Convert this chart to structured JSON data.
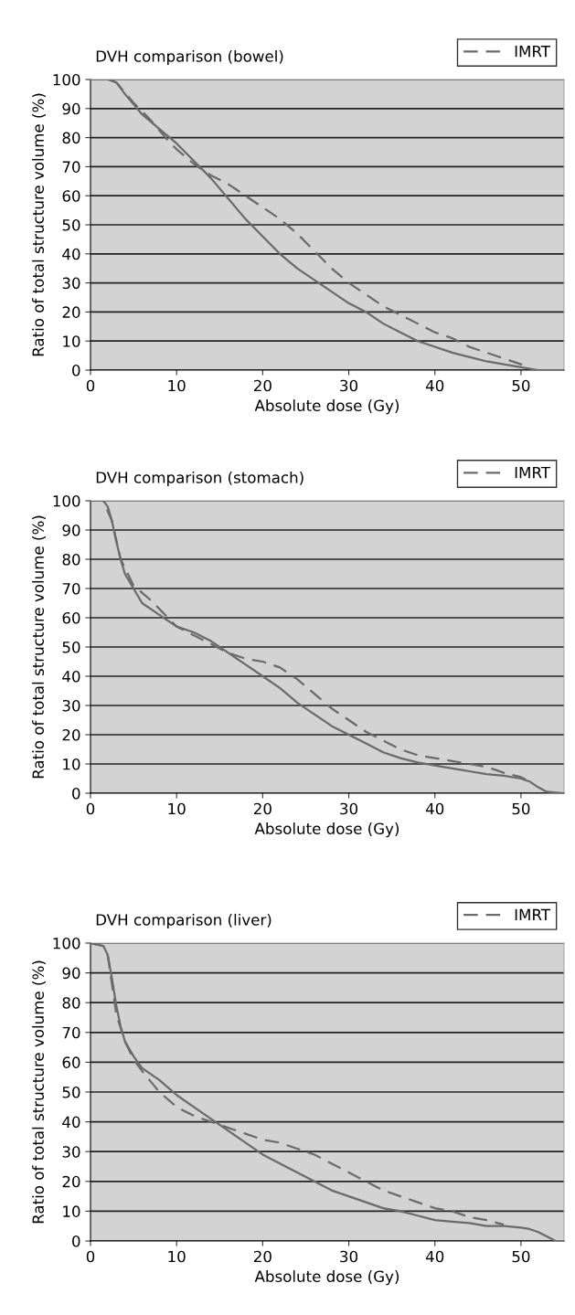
{
  "chart_data": [
    {
      "type": "line",
      "title": "DVH comparison (bowel)",
      "xlabel": "Absolute dose (Gy)",
      "ylabel": "Ratio of total structure volume (%)",
      "xlim": [
        0,
        55
      ],
      "xticks": [
        0,
        10,
        20,
        30,
        40,
        50
      ],
      "ylim": [
        0,
        100
      ],
      "yticks": [
        0,
        10,
        20,
        30,
        40,
        50,
        60,
        70,
        80,
        90,
        100
      ],
      "grid": "y",
      "legend": "top right",
      "marker": "none",
      "series": [
        {
          "color": "#6a6a6a",
          "line_style": "solid",
          "x": [
            0,
            2,
            3,
            4,
            6,
            8,
            10,
            12,
            14,
            16,
            18,
            20,
            22,
            24,
            26,
            28,
            30,
            32,
            34,
            36,
            38,
            40,
            42,
            44,
            46,
            48,
            50,
            52,
            55
          ],
          "values": [
            100,
            100,
            99,
            95,
            88,
            83,
            78,
            72,
            66,
            59,
            52,
            46,
            40,
            35,
            31,
            27,
            23,
            20,
            16,
            13,
            10,
            8,
            6,
            4.5,
            3,
            2,
            1,
            0,
            0
          ]
        },
        {
          "name": "IMRT",
          "color": "#6a6a6a",
          "line_style": "dashed",
          "x": [
            0,
            2,
            3,
            5,
            7,
            9,
            10,
            12,
            14,
            16,
            18,
            20,
            22,
            24,
            26,
            28,
            30,
            32,
            34,
            36,
            38,
            40,
            42,
            44,
            46,
            48,
            50,
            51
          ],
          "values": [
            100,
            100,
            99,
            92,
            86,
            79,
            76,
            71,
            67,
            64,
            60,
            56,
            52,
            47,
            41,
            35,
            30,
            26,
            22,
            19,
            16,
            13,
            11,
            8,
            6,
            4,
            2,
            0.5
          ]
        }
      ]
    },
    {
      "type": "line",
      "title": "DVH comparison (stomach)",
      "xlabel": "Absolute dose (Gy)",
      "ylabel": "Ratio of total structure volume (%)",
      "xlim": [
        0,
        55
      ],
      "xticks": [
        0,
        10,
        20,
        30,
        40,
        50
      ],
      "ylim": [
        0,
        100
      ],
      "yticks": [
        0,
        10,
        20,
        30,
        40,
        50,
        60,
        70,
        80,
        90,
        100
      ],
      "grid": "y",
      "legend": "top right",
      "marker": "none",
      "series": [
        {
          "color": "#6a6a6a",
          "line_style": "solid",
          "x": [
            0,
            1.5,
            2,
            2.5,
            3,
            3.5,
            4,
            5,
            6,
            8,
            10,
            12,
            14,
            16,
            18,
            20,
            22,
            24,
            26,
            28,
            30,
            32,
            34,
            36,
            38,
            40,
            42,
            44,
            46,
            48,
            50,
            51,
            52,
            53,
            55
          ],
          "values": [
            100,
            100,
            98,
            93,
            86,
            80,
            75,
            70,
            65,
            61,
            57,
            55,
            52,
            48,
            44,
            40,
            36,
            31,
            27,
            23,
            20,
            17,
            14,
            12,
            10.5,
            9.5,
            8.5,
            7.5,
            6.5,
            6,
            5,
            4,
            2,
            0.5,
            0
          ]
        },
        {
          "name": "IMRT",
          "color": "#6a6a6a",
          "line_style": "dashed",
          "x": [
            0,
            1.5,
            2.5,
            3.5,
            5,
            7,
            8,
            10,
            12,
            14,
            16,
            18,
            20,
            22,
            24,
            26,
            28,
            30,
            32,
            34,
            36,
            38,
            40,
            42,
            44,
            46,
            48,
            50,
            51
          ],
          "values": [
            100,
            100,
            93,
            80,
            71,
            66,
            63,
            57,
            54,
            51,
            48,
            46,
            45,
            43,
            39,
            34,
            29,
            25,
            21,
            18,
            15,
            13,
            12,
            11,
            10,
            9,
            7,
            5.5,
            4
          ]
        }
      ]
    },
    {
      "type": "line",
      "title": "DVH comparison (liver)",
      "xlabel": "Absolute dose (Gy)",
      "ylabel": "Ratio of total structure volume (%)",
      "xlim": [
        0,
        55
      ],
      "xticks": [
        0,
        10,
        20,
        30,
        40,
        50
      ],
      "ylim": [
        0,
        100
      ],
      "yticks": [
        0,
        10,
        20,
        30,
        40,
        50,
        60,
        70,
        80,
        90,
        100
      ],
      "grid": "y",
      "legend": "top right",
      "marker": "none",
      "series": [
        {
          "color": "#6a6a6a",
          "line_style": "solid",
          "x": [
            0,
            1.5,
            2,
            2.5,
            3,
            3.5,
            4,
            5,
            6,
            8,
            10,
            12,
            14,
            16,
            18,
            20,
            22,
            24,
            26,
            28,
            30,
            32,
            34,
            36,
            38,
            40,
            42,
            44,
            46,
            48,
            50,
            51,
            52,
            53,
            54,
            55
          ],
          "values": [
            100,
            99,
            96,
            88,
            79,
            72,
            67,
            62,
            58,
            54,
            49,
            45,
            41,
            37,
            33,
            29,
            26,
            23,
            20,
            17,
            15,
            13,
            11,
            10,
            8.5,
            7,
            6.5,
            6,
            5,
            5,
            4.5,
            4,
            3,
            1.5,
            0,
            0
          ]
        },
        {
          "name": "IMRT",
          "color": "#6a6a6a",
          "line_style": "dashed",
          "x": [
            0,
            1.5,
            2,
            2.5,
            3,
            4,
            5,
            6,
            8,
            10,
            12,
            14,
            16,
            18,
            20,
            22,
            24,
            26,
            28,
            30,
            32,
            34,
            36,
            38,
            40,
            42,
            44,
            46,
            48
          ],
          "values": [
            100,
            99,
            96,
            86,
            76,
            67,
            61,
            57,
            50,
            45,
            42,
            40,
            38,
            36,
            34,
            33,
            31,
            29,
            26,
            23,
            20,
            17,
            15,
            13,
            11,
            10,
            8,
            7,
            5.5
          ]
        }
      ]
    }
  ]
}
